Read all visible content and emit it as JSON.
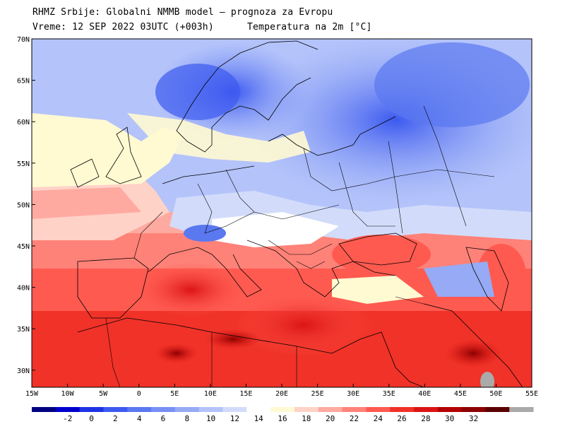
{
  "header": {
    "line1": "RHMZ Srbije: Globalni NMMB model — prognoza za Evropu",
    "line2_left": "Vreme: 12 SEP 2022 03UTC (+003h)",
    "line2_right": "Temperatura na 2m [°C]"
  },
  "map": {
    "lon_ticks": [
      "15W",
      "10W",
      "5W",
      "0",
      "5E",
      "10E",
      "15E",
      "20E",
      "25E",
      "30E",
      "35E",
      "40E",
      "45E",
      "50E",
      "55E"
    ],
    "lat_ticks": [
      "70N",
      "65N",
      "60N",
      "55N",
      "50N",
      "45N",
      "40N",
      "35N",
      "30N"
    ]
  },
  "colorbar": {
    "labels": [
      "-2",
      "0",
      "2",
      "4",
      "6",
      "8",
      "10",
      "12",
      "14",
      "16",
      "18",
      "20",
      "22",
      "24",
      "26",
      "28",
      "30",
      "32"
    ],
    "colors": [
      "#000080",
      "#0000cd",
      "#1e32e6",
      "#3c5af0",
      "#5a78f0",
      "#7890f5",
      "#96aaf5",
      "#b4c3fa",
      "#d2dcfa",
      "#ffffff",
      "#fffad2",
      "#ffd2c8",
      "#ffaaa0",
      "#ff8278",
      "#ff5a50",
      "#f03228",
      "#dc1414",
      "#b40000",
      "#8c0000",
      "#5a0000",
      "#aaaaaa"
    ]
  }
}
